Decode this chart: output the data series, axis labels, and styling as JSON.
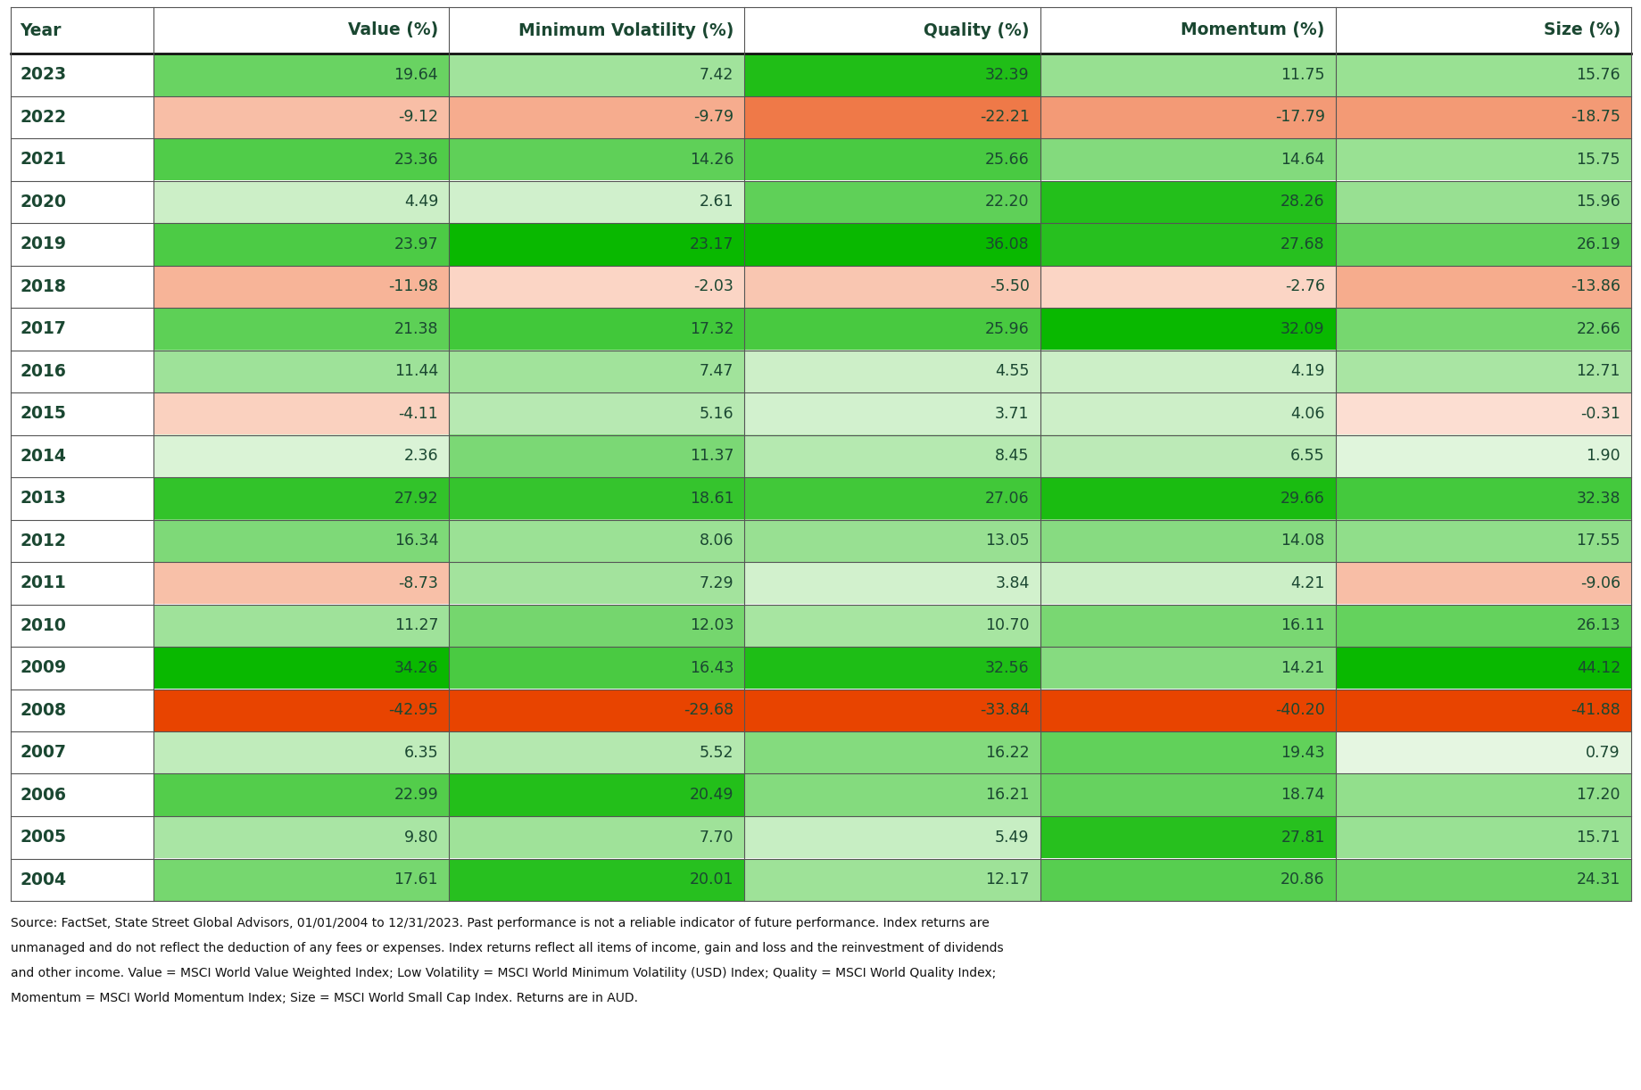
{
  "columns": [
    "Value (%)",
    "Minimum Volatility (%)",
    "Quality (%)",
    "Momentum (%)",
    "Size (%)"
  ],
  "years": [
    2023,
    2022,
    2021,
    2020,
    2019,
    2018,
    2017,
    2016,
    2015,
    2014,
    2013,
    2012,
    2011,
    2010,
    2009,
    2008,
    2007,
    2006,
    2005,
    2004
  ],
  "data": [
    [
      19.64,
      7.42,
      32.39,
      11.75,
      15.76
    ],
    [
      -9.12,
      -9.79,
      -22.21,
      -17.79,
      -18.75
    ],
    [
      23.36,
      14.26,
      25.66,
      14.64,
      15.75
    ],
    [
      4.49,
      2.61,
      22.2,
      28.26,
      15.96
    ],
    [
      23.97,
      23.17,
      36.08,
      27.68,
      26.19
    ],
    [
      -11.98,
      -2.03,
      -5.5,
      -2.76,
      -13.86
    ],
    [
      21.38,
      17.32,
      25.96,
      32.09,
      22.66
    ],
    [
      11.44,
      7.47,
      4.55,
      4.19,
      12.71
    ],
    [
      -4.11,
      5.16,
      3.71,
      4.06,
      -0.31
    ],
    [
      2.36,
      11.37,
      8.45,
      6.55,
      1.9
    ],
    [
      27.92,
      18.61,
      27.06,
      29.66,
      32.38
    ],
    [
      16.34,
      8.06,
      13.05,
      14.08,
      17.55
    ],
    [
      -8.73,
      7.29,
      3.84,
      4.21,
      -9.06
    ],
    [
      11.27,
      12.03,
      10.7,
      16.11,
      26.13
    ],
    [
      34.26,
      16.43,
      32.56,
      14.21,
      44.12
    ],
    [
      -42.95,
      -29.68,
      -33.84,
      -40.2,
      -41.88
    ],
    [
      6.35,
      5.52,
      16.22,
      19.43,
      0.79
    ],
    [
      22.99,
      20.49,
      16.21,
      18.74,
      17.2
    ],
    [
      9.8,
      7.7,
      5.49,
      27.81,
      15.71
    ],
    [
      17.61,
      20.01,
      12.17,
      20.86,
      24.31
    ]
  ],
  "header_text_color": "#1a4731",
  "year_text_color": "#1a4731",
  "footer_text_line1": "Source: FactSet, State Street Global Advisors, 01/01/2004 to 12/31/2023. Past performance is not a reliable indicator of future performance. Index returns are",
  "footer_text_line2": "unmanaged and do not reflect the deduction of any fees or expenses. Index returns reflect all items of income, gain and loss and the reinvestment of dividends",
  "footer_text_line3": "and other income. Value = MSCI World Value Weighted Index; Low Volatility = MSCI World Minimum Volatility (USD) Index; Quality = MSCI World Quality Index;",
  "footer_text_line4": "Momentum = MSCI World Momentum Index; Size = MSCI World Small Cap Index. Returns are in AUD.",
  "bg_color": "#ffffff",
  "strong_green": "#09b800",
  "mid_green": "#5abf00",
  "light_green": "#c8f0c0",
  "vlight_green": "#e8f8e4",
  "strong_orange": "#e84400",
  "mid_orange": "#f07050",
  "light_salmon": "#f8c0a8",
  "vlight_salmon": "#fde8e0"
}
